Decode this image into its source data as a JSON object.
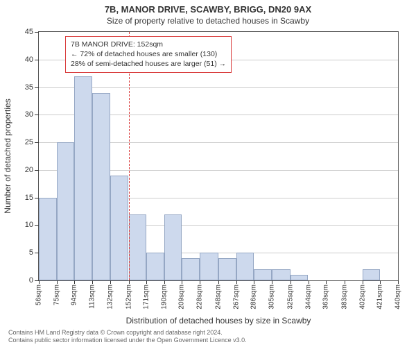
{
  "title": "7B, MANOR DRIVE, SCAWBY, BRIGG, DN20 9AX",
  "subtitle": "Size of property relative to detached houses in Scawby",
  "ylabel": "Number of detached properties",
  "xlabel": "Distribution of detached houses by size in Scawby",
  "footnote_line1": "Contains HM Land Registry data © Crown copyright and database right 2024.",
  "footnote_line2": "Contains public sector information licensed under the Open Government Licence v3.0.",
  "chart": {
    "type": "histogram",
    "background_color": "#ffffff",
    "border_color": "#555555",
    "grid_color": "#555555",
    "grid_opacity": 0.3,
    "ylim": [
      0,
      45
    ],
    "ytick_step": 5,
    "yticks": [
      0,
      5,
      10,
      15,
      20,
      25,
      30,
      35,
      40,
      45
    ],
    "xticks": [
      56,
      75,
      94,
      113,
      132,
      152,
      171,
      190,
      209,
      228,
      248,
      267,
      286,
      305,
      325,
      344,
      363,
      383,
      402,
      421,
      440
    ],
    "xtick_suffix": "sqm",
    "xlim": [
      56,
      440
    ],
    "bar_fill": "#cdd9ed",
    "bar_edge": "#95a7c4",
    "bar_width": 1.0,
    "bars": [
      {
        "x0": 56,
        "x1": 75,
        "y": 15
      },
      {
        "x0": 75,
        "x1": 94,
        "y": 25
      },
      {
        "x0": 94,
        "x1": 113,
        "y": 37
      },
      {
        "x0": 113,
        "x1": 132,
        "y": 34
      },
      {
        "x0": 132,
        "x1": 152,
        "y": 19
      },
      {
        "x0": 152,
        "x1": 171,
        "y": 12
      },
      {
        "x0": 171,
        "x1": 190,
        "y": 5
      },
      {
        "x0": 190,
        "x1": 209,
        "y": 12
      },
      {
        "x0": 209,
        "x1": 228,
        "y": 4
      },
      {
        "x0": 228,
        "x1": 248,
        "y": 5
      },
      {
        "x0": 248,
        "x1": 267,
        "y": 4
      },
      {
        "x0": 267,
        "x1": 286,
        "y": 5
      },
      {
        "x0": 286,
        "x1": 305,
        "y": 2
      },
      {
        "x0": 305,
        "x1": 325,
        "y": 2
      },
      {
        "x0": 325,
        "x1": 344,
        "y": 1
      },
      {
        "x0": 344,
        "x1": 363,
        "y": 0
      },
      {
        "x0": 363,
        "x1": 383,
        "y": 0
      },
      {
        "x0": 383,
        "x1": 402,
        "y": 0
      },
      {
        "x0": 402,
        "x1": 421,
        "y": 2
      },
      {
        "x0": 421,
        "x1": 440,
        "y": 0
      }
    ],
    "marker": {
      "x": 152,
      "color": "#d93b3b",
      "dash": "4 3",
      "width": 1.5
    },
    "annotation": {
      "border_color": "#d93b3b",
      "background": "#ffffff",
      "line1": "7B MANOR DRIVE: 152sqm",
      "line2": "← 72% of detached houses are smaller (130)",
      "line3": "28% of semi-detached houses are larger (51) →",
      "fontsize": 10.5
    },
    "title_fontsize": 13,
    "subtitle_fontsize": 12,
    "label_fontsize": 12,
    "tick_fontsize": 11
  }
}
